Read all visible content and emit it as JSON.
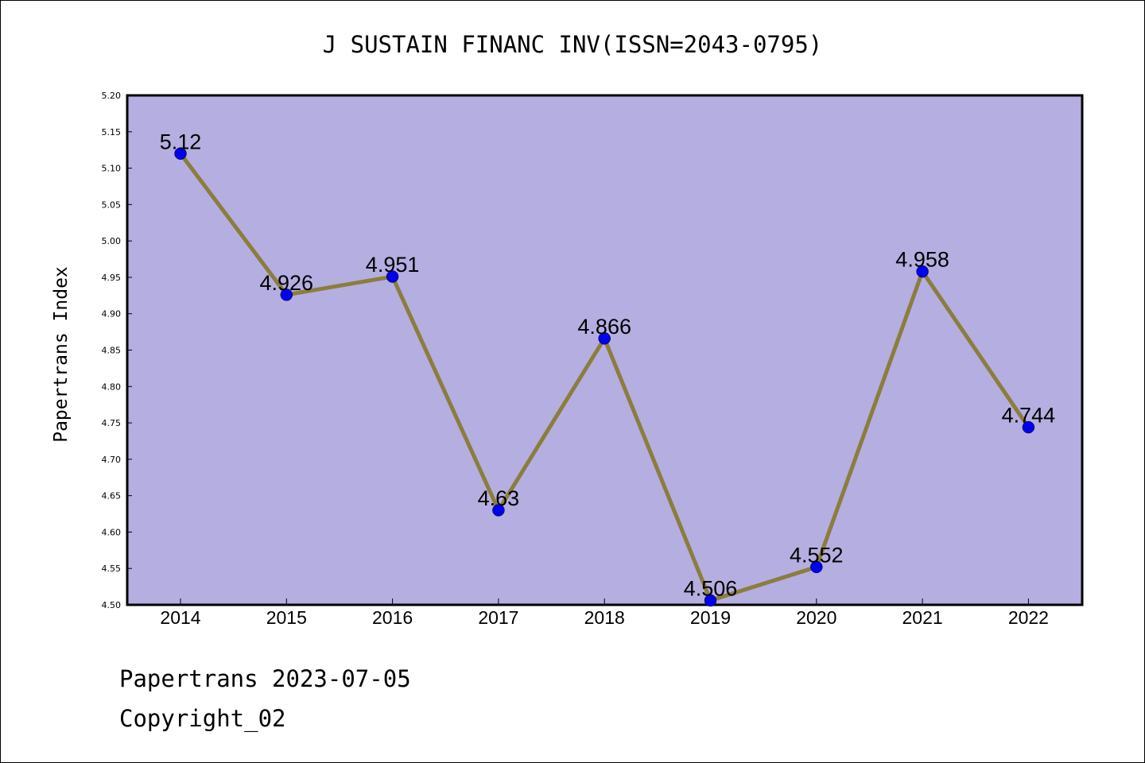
{
  "chart_data": {
    "type": "line",
    "title": "J SUSTAIN FINANC INV(ISSN=2043-0795)",
    "xlabel": "",
    "ylabel": "Papertrans Index",
    "categories": [
      "2014",
      "2015",
      "2016",
      "2017",
      "2018",
      "2019",
      "2020",
      "2021",
      "2022"
    ],
    "values": [
      5.12,
      4.926,
      4.951,
      4.63,
      4.866,
      4.506,
      4.552,
      4.958,
      4.744
    ],
    "data_labels": [
      "5.12",
      "4.926",
      "4.951",
      "4.63",
      "4.866",
      "4.506",
      "4.552",
      "4.958",
      "4.744"
    ],
    "ylim": [
      4.5,
      5.2
    ],
    "yticks": [
      "4.50",
      "4.55",
      "4.60",
      "4.65",
      "4.70",
      "4.75",
      "4.80",
      "4.85",
      "4.90",
      "4.95",
      "5.00",
      "5.05",
      "5.10",
      "5.15",
      "5.20"
    ],
    "grid": false,
    "legend": "none",
    "colors": {
      "plot_background": "#b5aee0",
      "line": "#8b7d3c",
      "marker": "#0000ee"
    }
  },
  "footer": {
    "line1": "Papertrans 2023-07-05",
    "line2": "Copyright_02"
  }
}
